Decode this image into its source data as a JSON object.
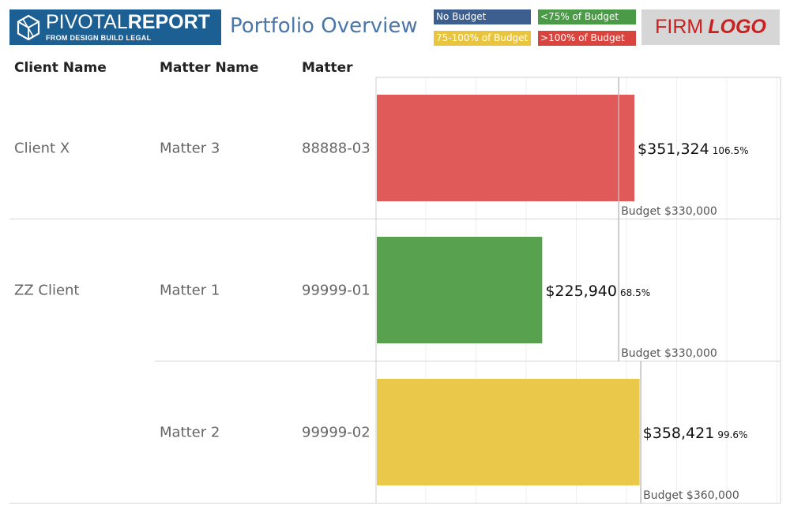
{
  "header": {
    "brand": {
      "name_light": "PIVOTAL",
      "name_bold": "REPORT",
      "subtitle": "FROM DESIGN BUILD LEGAL",
      "icon": "hexagon-cube-icon"
    },
    "title": "Portfolio Overview",
    "firm_logo": {
      "firm": "FIRM",
      "logo": "LOGO"
    }
  },
  "legend": [
    {
      "label": "No Budget",
      "color": "#3d5f8f"
    },
    {
      "label": "<75% of Budget",
      "color": "#4b9a48"
    },
    {
      "label": "75-100% of Budget",
      "color": "#e9c43e"
    },
    {
      "label": ">100% of Budget",
      "color": "#d9453e"
    }
  ],
  "columns": {
    "client": "Client Name",
    "matter_name": "Matter Name",
    "matter": "Matter"
  },
  "chart_data": {
    "type": "bar",
    "orientation": "horizontal",
    "xlim": [
      0,
      550000
    ],
    "grid": true,
    "rows": [
      {
        "client": "Client X",
        "matter_name": "Matter 3",
        "matter": "88888-03",
        "value": 351324,
        "value_label": "$351,324",
        "pct_label": "106.5%",
        "budget": 330000,
        "budget_label": "Budget $330,000",
        "color": "#e05a5a"
      },
      {
        "client": "ZZ Client",
        "matter_name": "Matter 1",
        "matter": "99999-01",
        "value": 225940,
        "value_label": "$225,940",
        "pct_label": "68.5%",
        "budget": 330000,
        "budget_label": "Budget $330,000",
        "color": "#58a14e"
      },
      {
        "client": "",
        "matter_name": "Matter 2",
        "matter": "99999-02",
        "value": 358421,
        "value_label": "$358,421",
        "pct_label": "99.6%",
        "budget": 360000,
        "budget_label": "Budget $360,000",
        "color": "#eac84a"
      }
    ]
  }
}
